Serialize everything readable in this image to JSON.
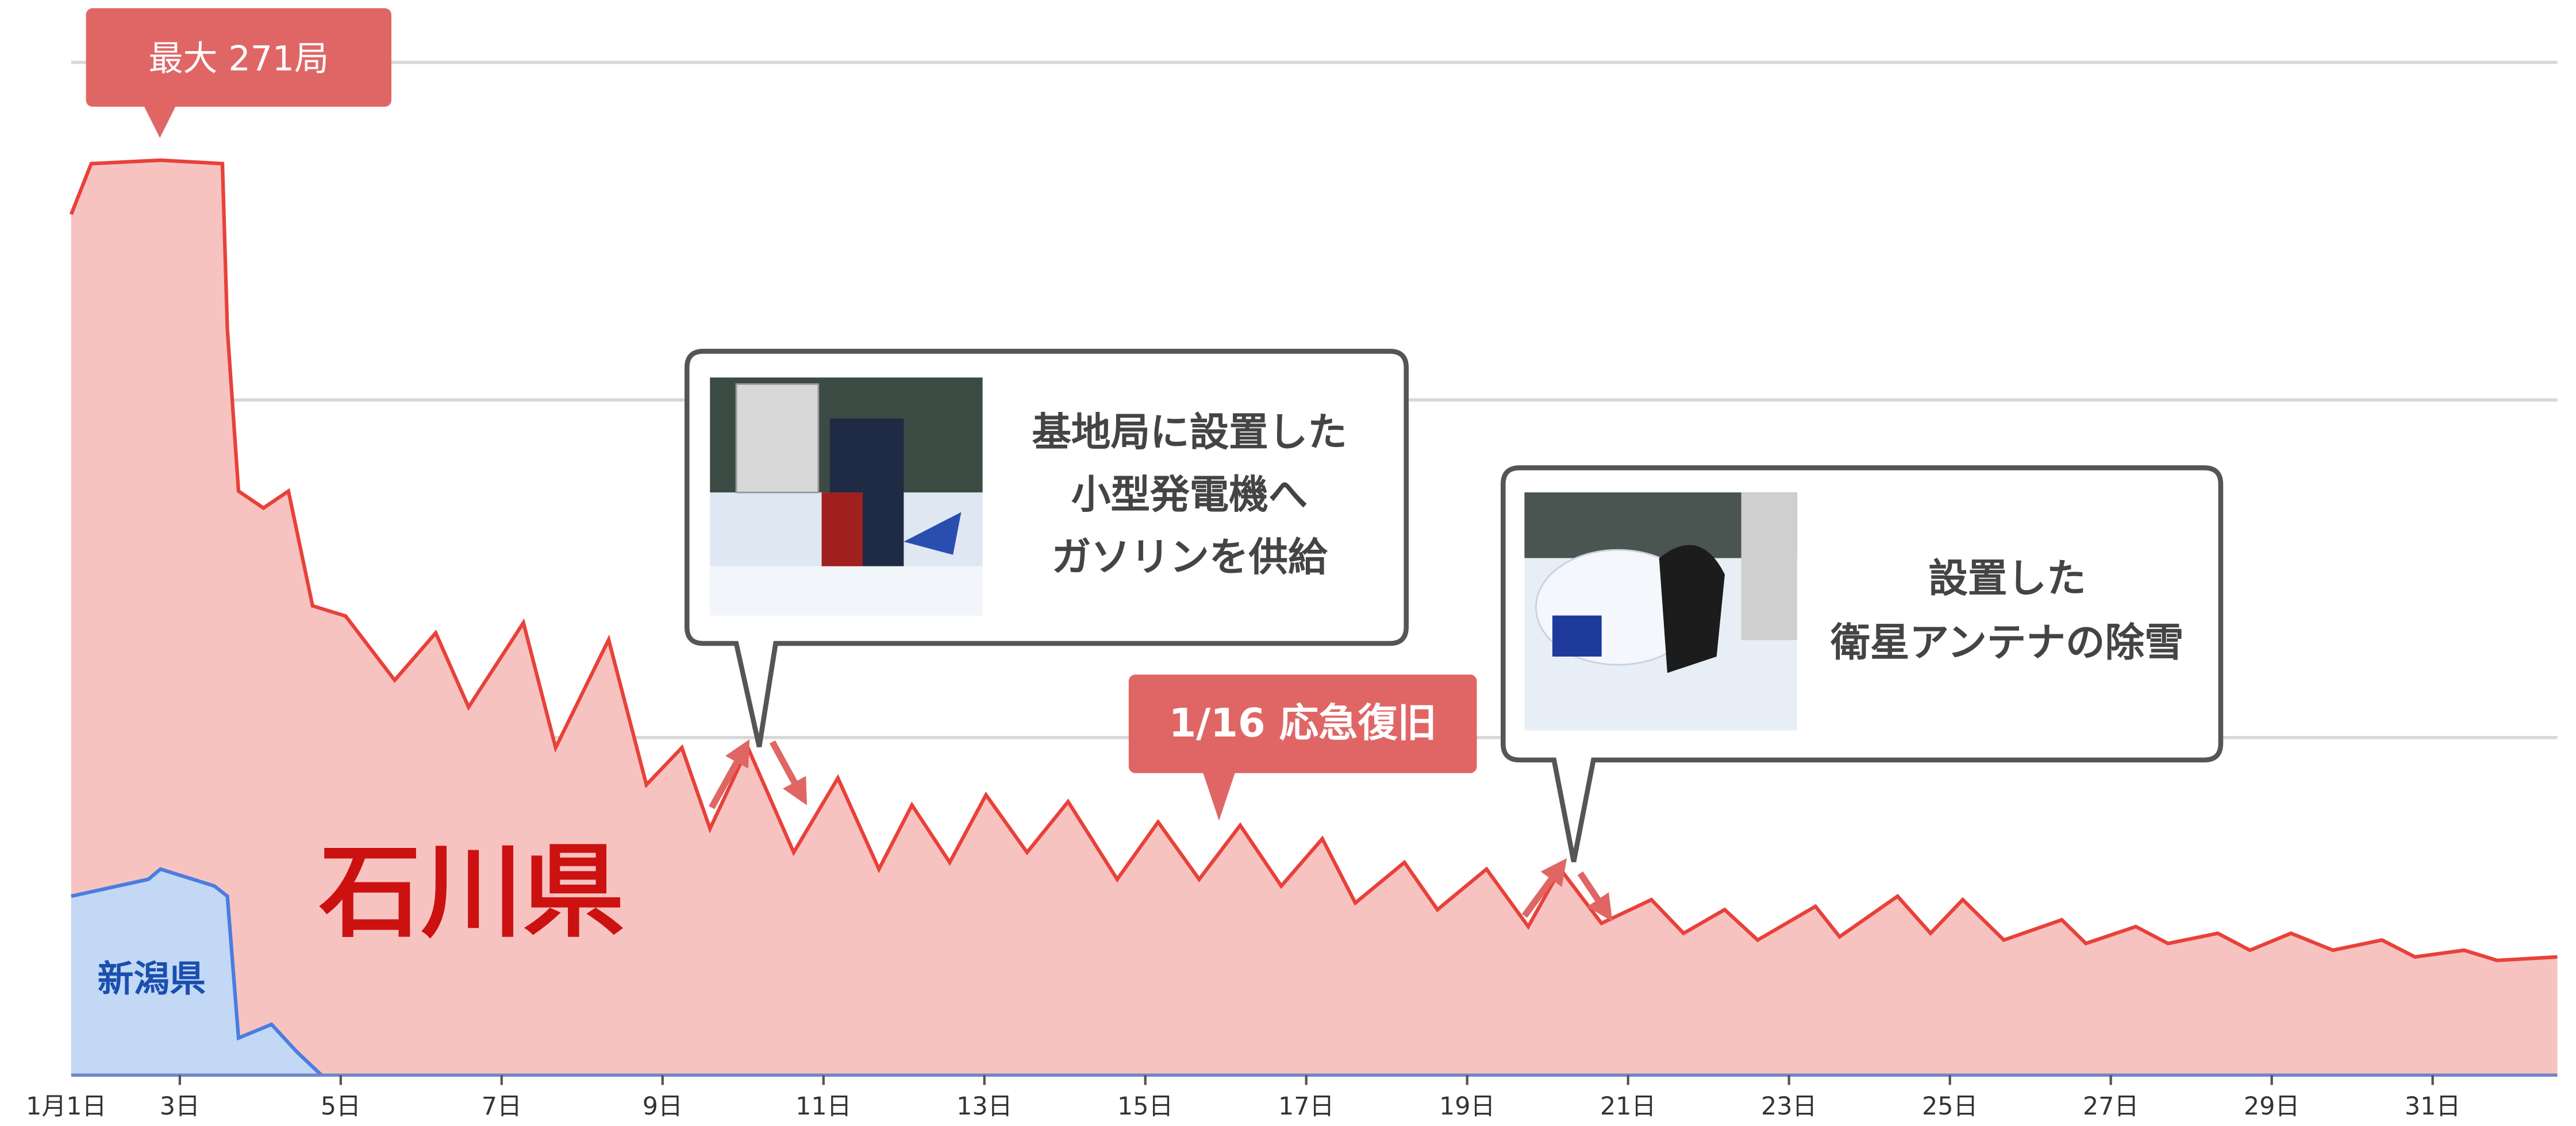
{
  "chart_data": {
    "type": "area",
    "xlim": [
      1.65,
      32.55
    ],
    "ylim": [
      0,
      300
    ],
    "yticks": [
      0,
      100,
      200,
      300
    ],
    "grid": true,
    "xticks": [
      {
        "value": 1,
        "label": "1月1日"
      },
      {
        "value": 3,
        "label": "3日"
      },
      {
        "value": 5,
        "label": "5日"
      },
      {
        "value": 7,
        "label": "7日"
      },
      {
        "value": 9,
        "label": "9日"
      },
      {
        "value": 11,
        "label": "11日"
      },
      {
        "value": 13,
        "label": "13日"
      },
      {
        "value": 15,
        "label": "15日"
      },
      {
        "value": 17,
        "label": "17日"
      },
      {
        "value": 19,
        "label": "19日"
      },
      {
        "value": 21,
        "label": "21日"
      },
      {
        "value": 23,
        "label": "23日"
      },
      {
        "value": 25,
        "label": "25日"
      },
      {
        "value": 27,
        "label": "27日"
      },
      {
        "value": 29,
        "label": "29日"
      },
      {
        "value": 31,
        "label": "31日"
      }
    ],
    "series": [
      {
        "name": "石川県",
        "color": "#e8413a",
        "fill": "#f7c3c0",
        "x": [
          1.65,
          1.9,
          2.76,
          3.53,
          3.59,
          3.73,
          4.04,
          4.35,
          4.65,
          5.06,
          5.67,
          6.18,
          6.59,
          7.27,
          7.67,
          8.33,
          8.8,
          9.24,
          9.59,
          10.06,
          10.63,
          11.18,
          11.69,
          12.1,
          12.57,
          13.02,
          13.53,
          14.04,
          14.65,
          15.16,
          15.67,
          16.18,
          16.69,
          17.2,
          17.61,
          18.22,
          18.63,
          19.24,
          19.76,
          20.16,
          20.67,
          21.29,
          21.69,
          22.2,
          22.61,
          23.33,
          23.63,
          24.35,
          24.76,
          25.16,
          25.67,
          26.39,
          26.69,
          27.31,
          27.71,
          28.33,
          28.73,
          29.24,
          29.76,
          30.37,
          30.78,
          31.39,
          31.8,
          32.55
        ],
        "values": [
          255,
          270,
          271,
          270,
          221,
          173,
          168,
          173,
          139,
          136,
          117,
          131,
          109,
          134,
          97,
          129,
          86,
          97,
          73,
          97,
          66,
          88,
          61,
          80,
          63,
          83,
          66,
          81,
          58,
          75,
          58,
          74,
          56,
          70,
          51,
          63,
          49,
          61,
          44,
          61,
          45,
          52,
          42,
          49,
          40,
          50,
          41,
          53,
          42,
          52,
          40,
          46,
          39,
          44,
          39,
          42,
          37,
          42,
          37,
          40,
          35,
          37,
          34,
          35
        ]
      },
      {
        "name": "新潟県",
        "color": "#4a7de0",
        "fill": "#c3d8f5",
        "x": [
          1.65,
          2.61,
          2.76,
          3.43,
          3.59,
          3.73,
          4.14,
          4.45,
          4.76
        ],
        "values": [
          53,
          58,
          61,
          56,
          53,
          11,
          15,
          7,
          0
        ]
      }
    ],
    "annotations": {
      "peak": "最大 271局",
      "recovery": "1/16 応急復旧",
      "callout_1": [
        "基地局に設置した",
        "小型発電機へ",
        "ガソリンを供給"
      ],
      "callout_2": [
        "設置した",
        "衛星アンテナの除雪"
      ]
    }
  }
}
